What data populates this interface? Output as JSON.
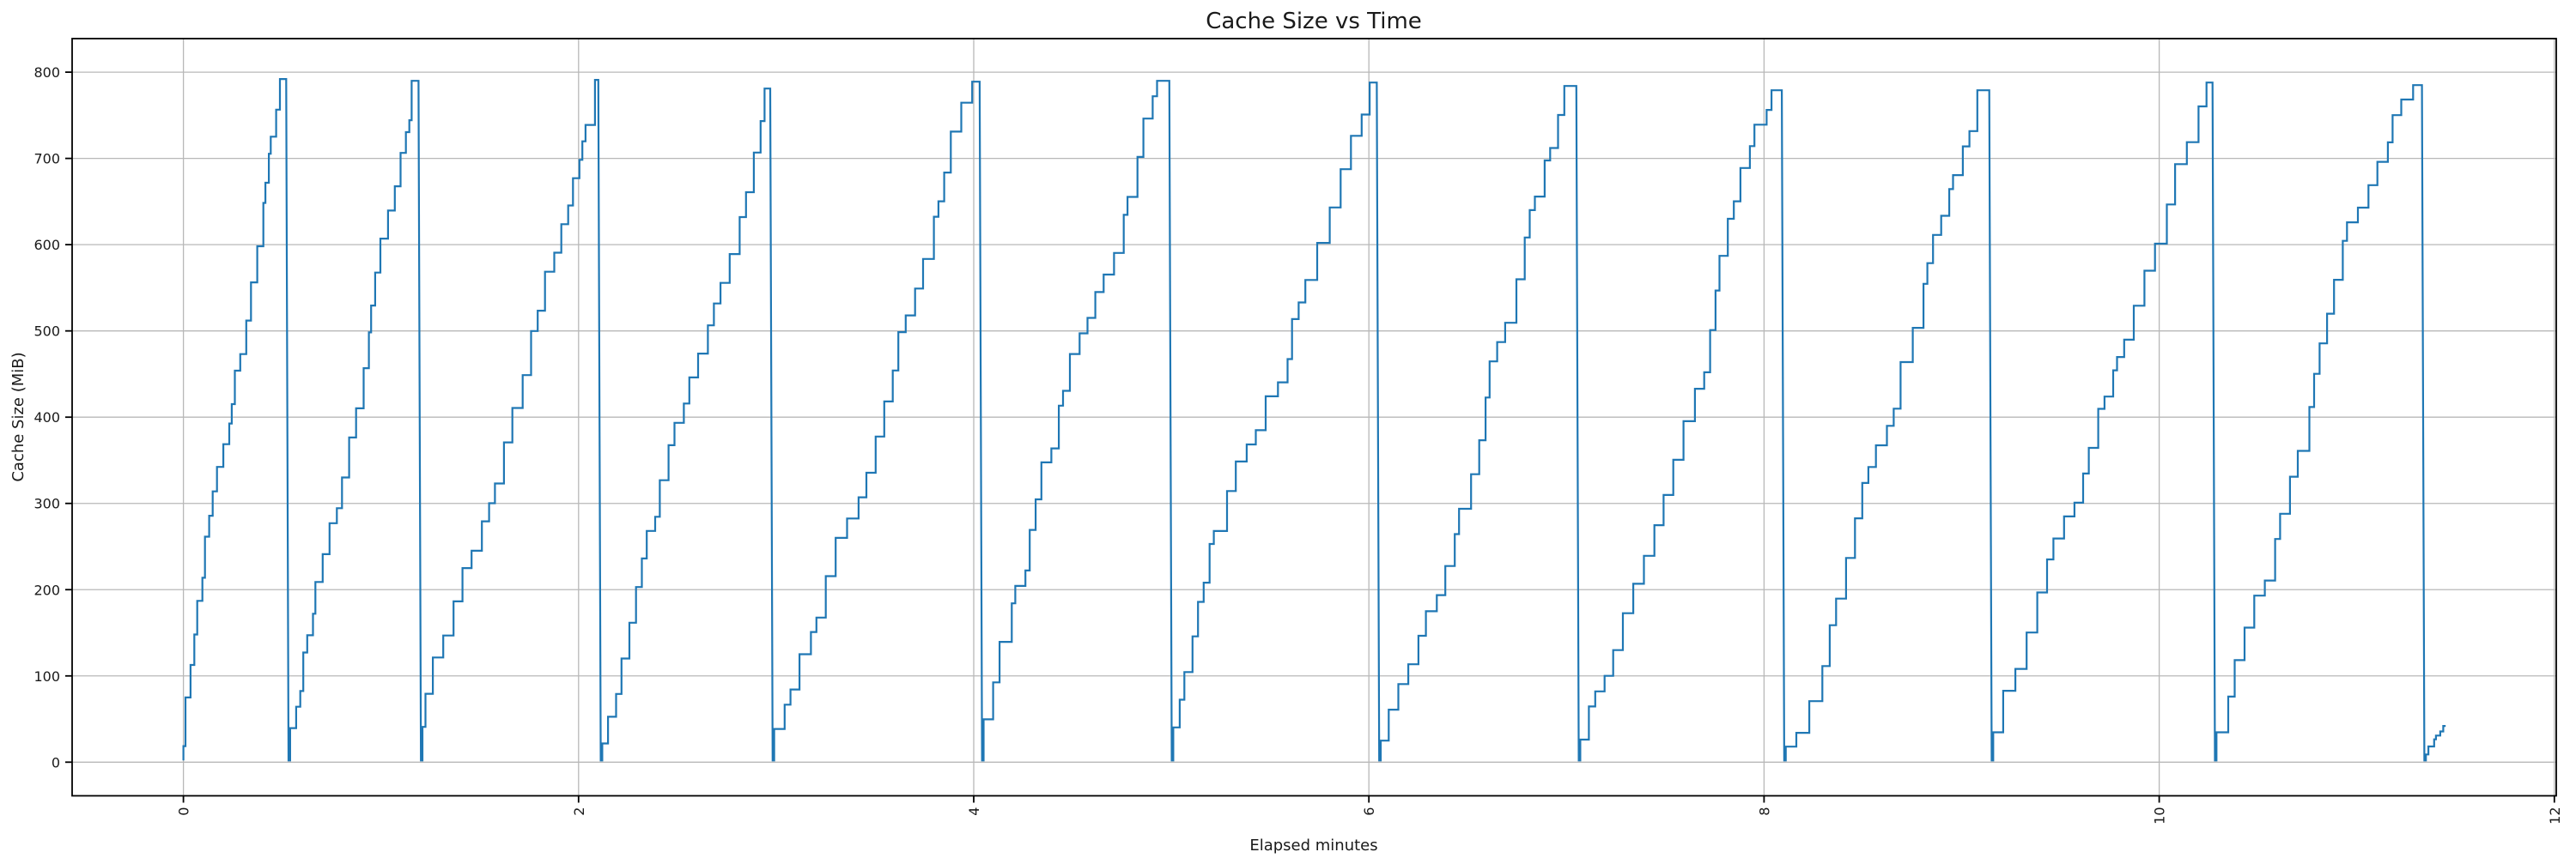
{
  "figure": {
    "title": "Cache Size vs Time",
    "xlabel": "Elapsed minutes",
    "ylabel": "Cache Size (MiB)"
  },
  "chart_data": {
    "type": "line",
    "title": "Cache Size vs Time",
    "xlabel": "Elapsed minutes",
    "ylabel": "Cache Size (MiB)",
    "x_ticks": [
      0,
      2,
      4,
      6,
      8,
      10,
      12
    ],
    "x_tick_rotation_deg": 90,
    "y_ticks": [
      0,
      100,
      200,
      300,
      400,
      500,
      600,
      700,
      800
    ],
    "xlim": [
      -0.56,
      12.01
    ],
    "ylim": [
      -39,
      839
    ],
    "grid": true,
    "legend_position": "none",
    "line_color": "#1f77b4",
    "grid_color": "#b8b8b8",
    "spine_color": "#000000",
    "background_color": "#ffffff",
    "pattern": "repeating sawtooth: cache fills from ~0 MiB in small uneven steps (~20-45 MiB each) up to ~780-792 MiB, then instantly evicts back to ~0",
    "series": [
      {
        "name": "cache size",
        "reset_value_mib": 2,
        "typical_step_mib": 33,
        "teeth": [
          {
            "start": 0.0,
            "end": 0.52,
            "peak": 792
          },
          {
            "start": 0.54,
            "end": 1.19,
            "peak": 790
          },
          {
            "start": 1.21,
            "end": 2.1,
            "peak": 791
          },
          {
            "start": 2.12,
            "end": 2.97,
            "peak": 781
          },
          {
            "start": 2.99,
            "end": 4.03,
            "peak": 789
          },
          {
            "start": 4.05,
            "end": 4.99,
            "peak": 790
          },
          {
            "start": 5.01,
            "end": 6.04,
            "peak": 788
          },
          {
            "start": 6.06,
            "end": 7.05,
            "peak": 784
          },
          {
            "start": 7.07,
            "end": 8.09,
            "peak": 779
          },
          {
            "start": 8.11,
            "end": 9.14,
            "peak": 779
          },
          {
            "start": 9.16,
            "end": 10.27,
            "peak": 788
          },
          {
            "start": 10.29,
            "end": 11.33,
            "peak": 785
          }
        ],
        "tail": {
          "start": 11.35,
          "end": 11.45,
          "peak": 42
        }
      }
    ]
  }
}
